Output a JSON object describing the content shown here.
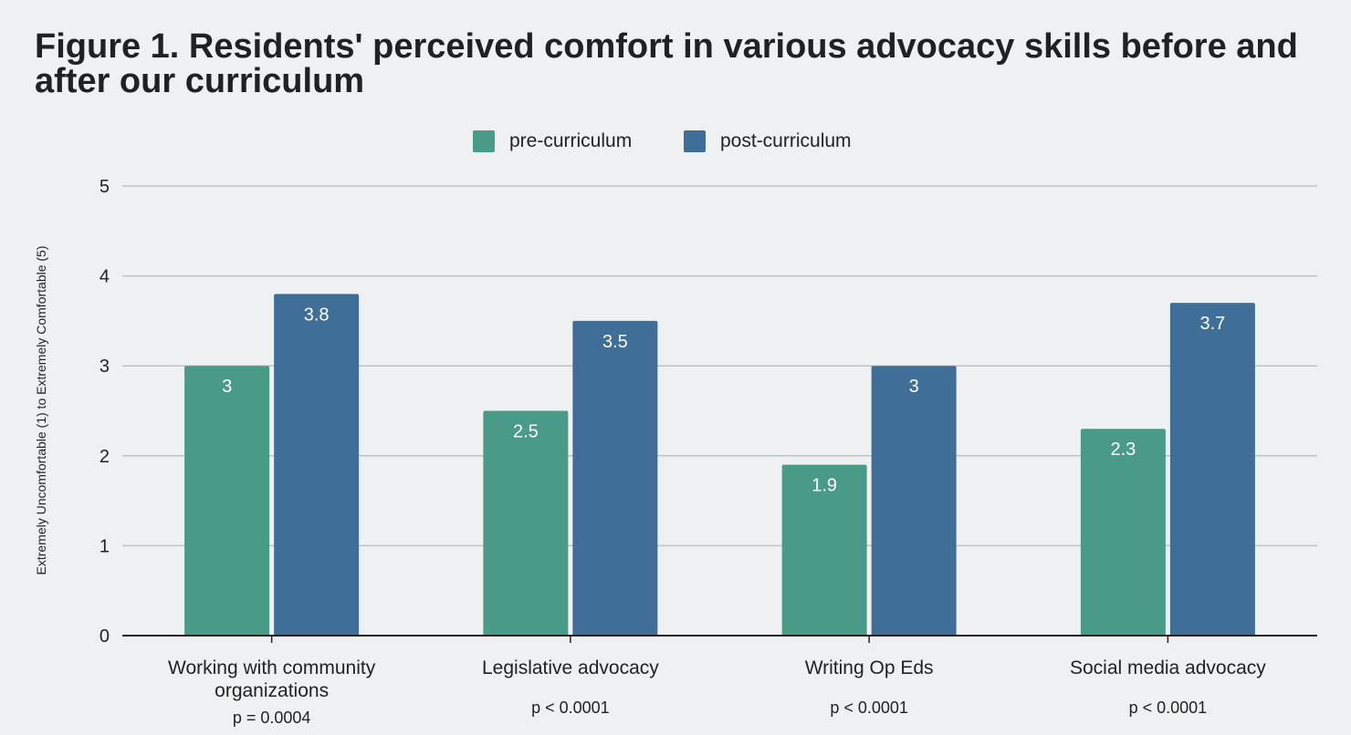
{
  "chart_data": {
    "type": "bar",
    "title": "Figure 1. Residents' perceived comfort in various advocacy skills before and after our curriculum",
    "ylabel": "Extremely Uncomfortable (1) to Extremely Comfortable (5)",
    "xlabel": "",
    "ylim": [
      0,
      5
    ],
    "yticks": [
      0,
      1,
      2,
      3,
      4,
      5
    ],
    "grid": true,
    "legend_position": "top",
    "categories": [
      [
        "Working with community",
        "organizations"
      ],
      [
        "Legislative advocacy"
      ],
      [
        "Writing Op Eds"
      ],
      [
        "Social media advocacy"
      ]
    ],
    "annotations": [
      "p = 0.0004",
      "p < 0.0001",
      "p < 0.0001",
      "p < 0.0001"
    ],
    "series": [
      {
        "name": "pre-curriculum",
        "color": "#4a9a88",
        "values": [
          3,
          2.5,
          1.9,
          2.3
        ]
      },
      {
        "name": "post-curriculum",
        "color": "#3f6f98",
        "values": [
          3.8,
          3.5,
          3,
          3.7
        ]
      }
    ]
  }
}
